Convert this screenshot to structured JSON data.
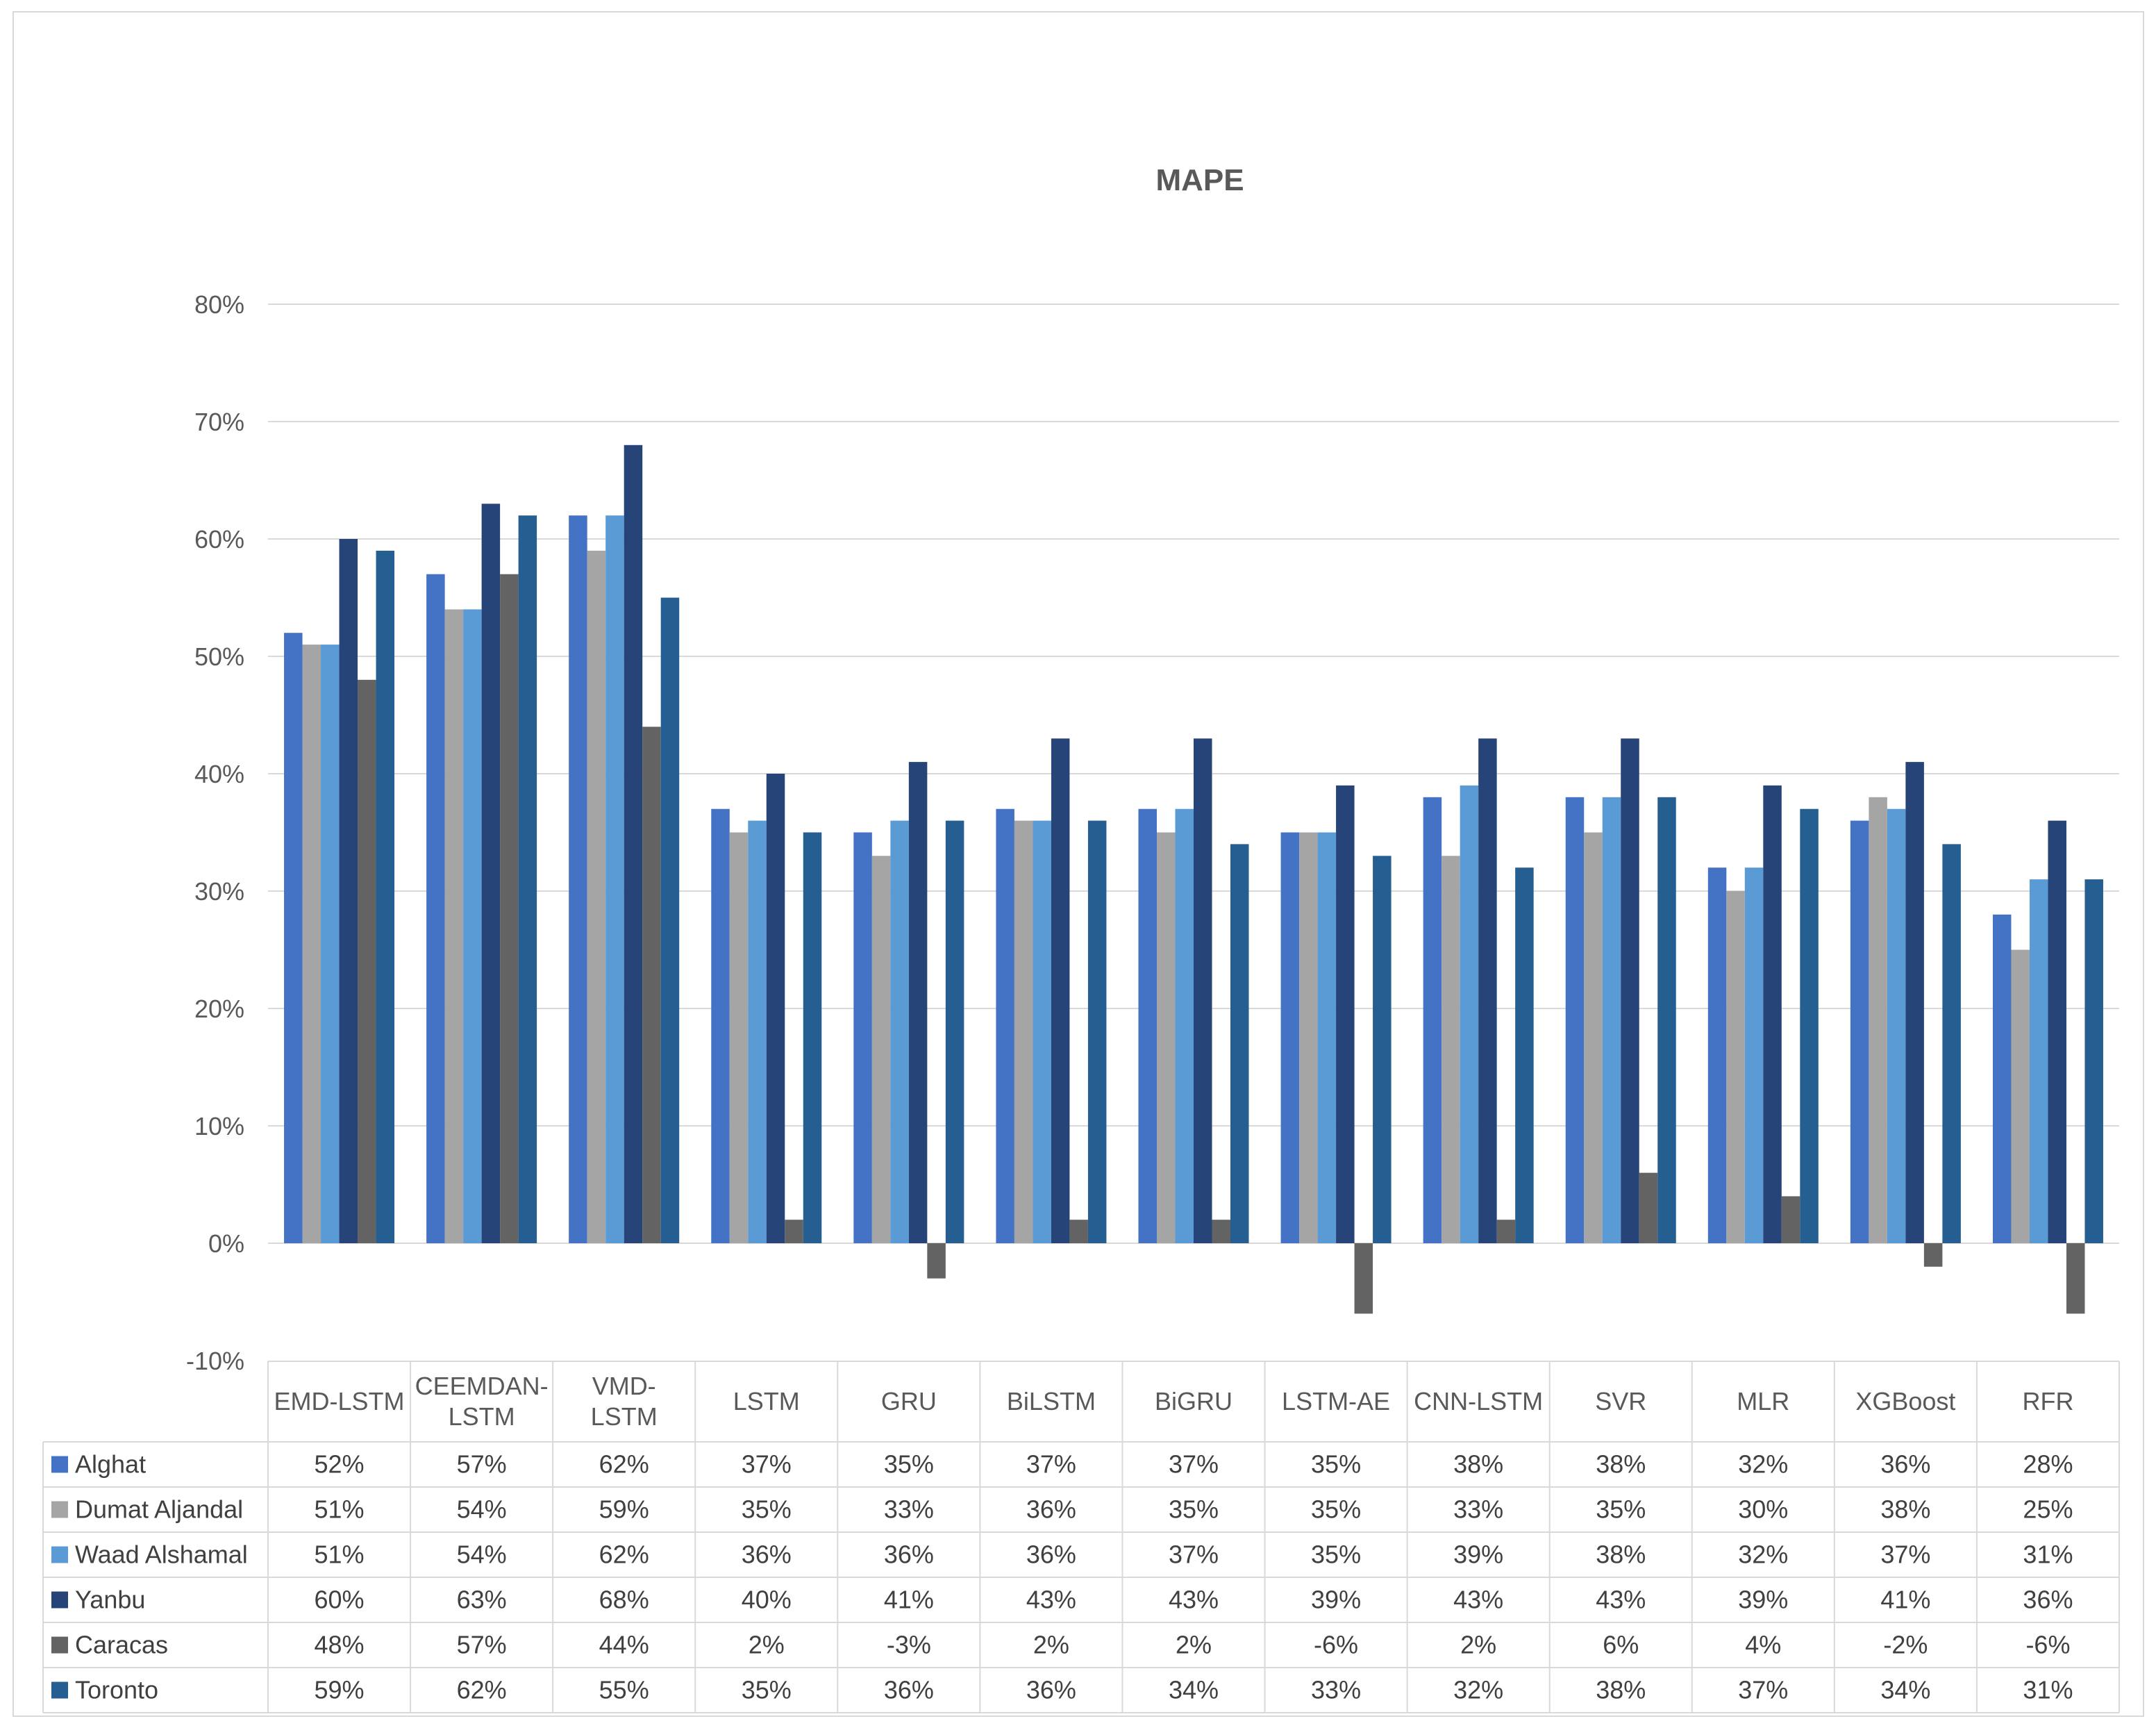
{
  "chart_data": {
    "type": "bar",
    "title": "MAPE",
    "xlabel": "",
    "ylabel": "",
    "ylim": [
      -0.1,
      0.8
    ],
    "yticks": [
      "80%",
      "70%",
      "60%",
      "50%",
      "40%",
      "30%",
      "20%",
      "10%",
      "0%",
      "-10%"
    ],
    "ytick_values": [
      0.8,
      0.7,
      0.6,
      0.5,
      0.4,
      0.3,
      0.2,
      0.1,
      0.0,
      -0.1
    ],
    "grid": true,
    "legend_placement": "data table below chart",
    "categories": [
      "EMD-LSTM",
      "CEEMDAN-LSTM",
      "VMD-LSTM",
      "LSTM",
      "GRU",
      "BiLSTM",
      "BiGRU",
      "LSTM-AE",
      "CNN-LSTM",
      "SVR",
      "MLR",
      "XGBoost",
      "RFR"
    ],
    "category_lines": [
      [
        "EMD-LSTM"
      ],
      [
        "CEEMDAN-",
        "LSTM"
      ],
      [
        "VMD-",
        "LSTM"
      ],
      [
        "LSTM"
      ],
      [
        "GRU"
      ],
      [
        "BiLSTM"
      ],
      [
        "BiGRU"
      ],
      [
        "LSTM-AE"
      ],
      [
        "CNN-LSTM"
      ],
      [
        "SVR"
      ],
      [
        "MLR"
      ],
      [
        "XGBoost"
      ],
      [
        "RFR"
      ]
    ],
    "series": [
      {
        "name": "Alghat",
        "color": "#4472C4",
        "values": [
          0.52,
          0.57,
          0.62,
          0.37,
          0.35,
          0.37,
          0.37,
          0.35,
          0.38,
          0.38,
          0.32,
          0.36,
          0.28
        ],
        "labels": [
          "52%",
          "57%",
          "62%",
          "37%",
          "35%",
          "37%",
          "37%",
          "35%",
          "38%",
          "38%",
          "32%",
          "36%",
          "28%"
        ]
      },
      {
        "name": "Dumat Aljandal",
        "color": "#A5A5A5",
        "values": [
          0.51,
          0.54,
          0.59,
          0.35,
          0.33,
          0.36,
          0.35,
          0.35,
          0.33,
          0.35,
          0.3,
          0.38,
          0.25
        ],
        "labels": [
          "51%",
          "54%",
          "59%",
          "35%",
          "33%",
          "36%",
          "35%",
          "35%",
          "33%",
          "35%",
          "30%",
          "38%",
          "25%"
        ]
      },
      {
        "name": "Waad Alshamal",
        "color": "#5B9BD5",
        "values": [
          0.51,
          0.54,
          0.62,
          0.36,
          0.36,
          0.36,
          0.37,
          0.35,
          0.39,
          0.38,
          0.32,
          0.37,
          0.31
        ],
        "labels": [
          "51%",
          "54%",
          "62%",
          "36%",
          "36%",
          "36%",
          "37%",
          "35%",
          "39%",
          "38%",
          "32%",
          "37%",
          "31%"
        ]
      },
      {
        "name": "Yanbu",
        "color": "#264478",
        "values": [
          0.6,
          0.63,
          0.68,
          0.4,
          0.41,
          0.43,
          0.43,
          0.39,
          0.43,
          0.43,
          0.39,
          0.41,
          0.36
        ],
        "labels": [
          "60%",
          "63%",
          "68%",
          "40%",
          "41%",
          "43%",
          "43%",
          "39%",
          "43%",
          "43%",
          "39%",
          "41%",
          "36%"
        ]
      },
      {
        "name": "Caracas",
        "color": "#636363",
        "values": [
          0.48,
          0.57,
          0.44,
          0.02,
          -0.03,
          0.02,
          0.02,
          -0.06,
          0.02,
          0.06,
          0.04,
          -0.02,
          -0.06
        ],
        "labels": [
          "48%",
          "57%",
          "44%",
          "2%",
          "-3%",
          "2%",
          "2%",
          "-6%",
          "2%",
          "6%",
          "4%",
          "-2%",
          "-6%"
        ]
      },
      {
        "name": "Toronto",
        "color": "#255E91",
        "values": [
          0.59,
          0.62,
          0.55,
          0.35,
          0.36,
          0.36,
          0.34,
          0.33,
          0.32,
          0.38,
          0.37,
          0.34,
          0.31
        ],
        "labels": [
          "59%",
          "62%",
          "55%",
          "35%",
          "36%",
          "36%",
          "34%",
          "33%",
          "32%",
          "38%",
          "37%",
          "34%",
          "31%"
        ]
      }
    ]
  }
}
